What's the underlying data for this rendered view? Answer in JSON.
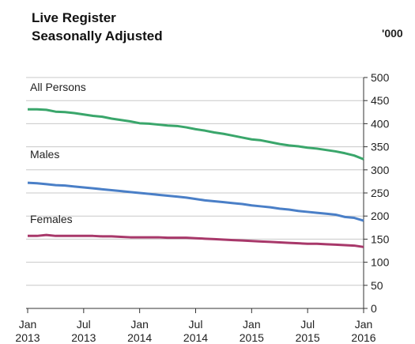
{
  "chart_data": {
    "type": "line",
    "title": "Live Register",
    "subtitle": "Seasonally Adjusted",
    "y_unit": "'000",
    "x": [
      "2013-01",
      "2013-02",
      "2013-03",
      "2013-04",
      "2013-05",
      "2013-06",
      "2013-07",
      "2013-08",
      "2013-09",
      "2013-10",
      "2013-11",
      "2013-12",
      "2014-01",
      "2014-02",
      "2014-03",
      "2014-04",
      "2014-05",
      "2014-06",
      "2014-07",
      "2014-08",
      "2014-09",
      "2014-10",
      "2014-11",
      "2014-12",
      "2015-01",
      "2015-02",
      "2015-03",
      "2015-04",
      "2015-05",
      "2015-06",
      "2015-07",
      "2015-08",
      "2015-09",
      "2015-10",
      "2015-11",
      "2015-12",
      "2016-01"
    ],
    "xticks": [
      {
        "value": "2013-01",
        "label": "Jan 2013"
      },
      {
        "value": "2013-07",
        "label": "Jul 2013"
      },
      {
        "value": "2014-01",
        "label": "Jan 2014"
      },
      {
        "value": "2014-07",
        "label": "Jul 2014"
      },
      {
        "value": "2015-01",
        "label": "Jan 2015"
      },
      {
        "value": "2015-07",
        "label": "Jul 2015"
      },
      {
        "value": "2016-01",
        "label": "Jan 2016"
      }
    ],
    "ylim": [
      0,
      500
    ],
    "yticks": [
      0,
      50,
      100,
      150,
      200,
      250,
      300,
      350,
      400,
      450,
      500
    ],
    "grid": true,
    "y_axis_side": "right",
    "series": [
      {
        "name": "All Persons",
        "color": "#3aa66b",
        "values": [
          431,
          431,
          430,
          426,
          425,
          423,
          420,
          417,
          415,
          411,
          408,
          405,
          401,
          400,
          398,
          396,
          395,
          392,
          388,
          385,
          381,
          378,
          374,
          370,
          366,
          364,
          360,
          356,
          353,
          351,
          348,
          346,
          343,
          340,
          336,
          331,
          323
        ]
      },
      {
        "name": "Males",
        "color": "#4a7fc7",
        "values": [
          272,
          271,
          269,
          267,
          266,
          264,
          262,
          260,
          258,
          256,
          254,
          252,
          250,
          248,
          246,
          244,
          242,
          240,
          237,
          234,
          232,
          230,
          228,
          226,
          223,
          221,
          219,
          216,
          214,
          211,
          209,
          207,
          205,
          203,
          198,
          196,
          190
        ]
      },
      {
        "name": "Females",
        "color": "#a8386a",
        "values": [
          157,
          157,
          159,
          157,
          157,
          157,
          157,
          157,
          156,
          156,
          155,
          154,
          154,
          154,
          154,
          153,
          153,
          153,
          152,
          151,
          150,
          149,
          148,
          147,
          146,
          145,
          144,
          143,
          142,
          141,
          140,
          140,
          139,
          138,
          137,
          136,
          133
        ]
      }
    ]
  }
}
